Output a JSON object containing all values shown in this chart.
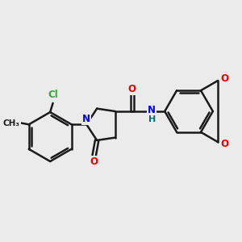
{
  "background_color": "#ebebeb",
  "bond_color": "#1a1a1a",
  "bond_width": 1.8,
  "atom_colors": {
    "N": "#0000ee",
    "O": "#ee0000",
    "Cl": "#33aa33",
    "H": "#007070",
    "C": "#1a1a1a"
  },
  "font_size_atom": 8.5
}
